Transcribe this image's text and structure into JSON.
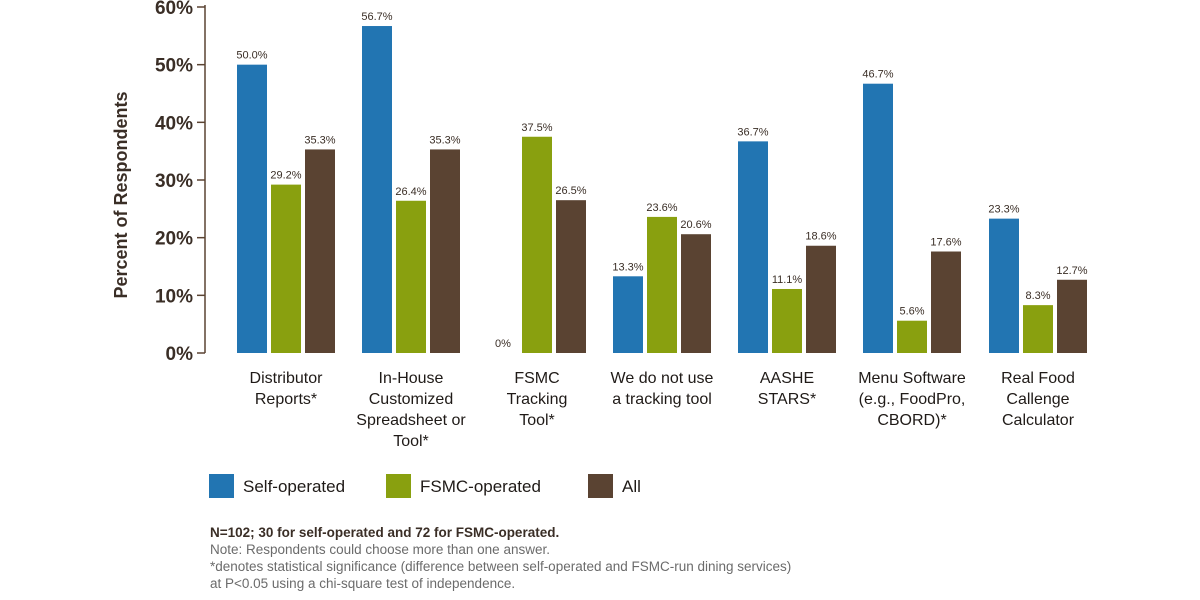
{
  "chart_data": {
    "type": "bar",
    "ylabel": "Percent of Respondents",
    "ylim": [
      0,
      60
    ],
    "yticks": [
      "0%",
      "10%",
      "20%",
      "30%",
      "40%",
      "50%",
      "60%"
    ],
    "categories": [
      [
        "Distributor",
        "Reports*"
      ],
      [
        "In-House",
        "Customized",
        "Spreadsheet or",
        "Tool*"
      ],
      [
        "FSMC",
        "Tracking",
        "Tool*"
      ],
      [
        "We do not use",
        "a tracking tool"
      ],
      [
        "AASHE",
        "STARS*"
      ],
      [
        "Menu Software",
        "(e.g., FoodPro,",
        "CBORD)*"
      ],
      [
        "Real Food",
        "Callenge",
        "Calculator"
      ]
    ],
    "series": [
      {
        "name": "Self-operated",
        "color": "#2275b2",
        "values": [
          50.0,
          56.7,
          0,
          13.3,
          36.7,
          46.7,
          23.3
        ],
        "labels": [
          "50.0%",
          "56.7%",
          "0%",
          "13.3%",
          "36.7%",
          "46.7%",
          "23.3%"
        ]
      },
      {
        "name": "FSMC-operated",
        "color": "#89a00f",
        "values": [
          29.2,
          26.4,
          37.5,
          23.6,
          11.1,
          5.6,
          8.3
        ],
        "labels": [
          "29.2%",
          "26.4%",
          "37.5%",
          "23.6%",
          "11.1%",
          "5.6%",
          "8.3%"
        ]
      },
      {
        "name": "All",
        "color": "#5a4332",
        "values": [
          35.3,
          35.3,
          26.5,
          20.6,
          18.6,
          17.6,
          12.7
        ],
        "labels": [
          "35.3%",
          "35.3%",
          "26.5%",
          "20.6%",
          "18.6%",
          "17.6%",
          "12.7%"
        ]
      }
    ],
    "legend": [
      "Self-operated",
      "FSMC-operated",
      "All"
    ]
  },
  "notes": {
    "sample": "N=102; 30 for self-operated and 72 for FSMC-operated.",
    "note": "Note: Respondents could choose more than one answer.",
    "significance_line1": "*denotes statistical significance (difference between self-operated and FSMC-run dining services)",
    "significance_line2": "at P<0.05 using a chi-square test of independence."
  }
}
